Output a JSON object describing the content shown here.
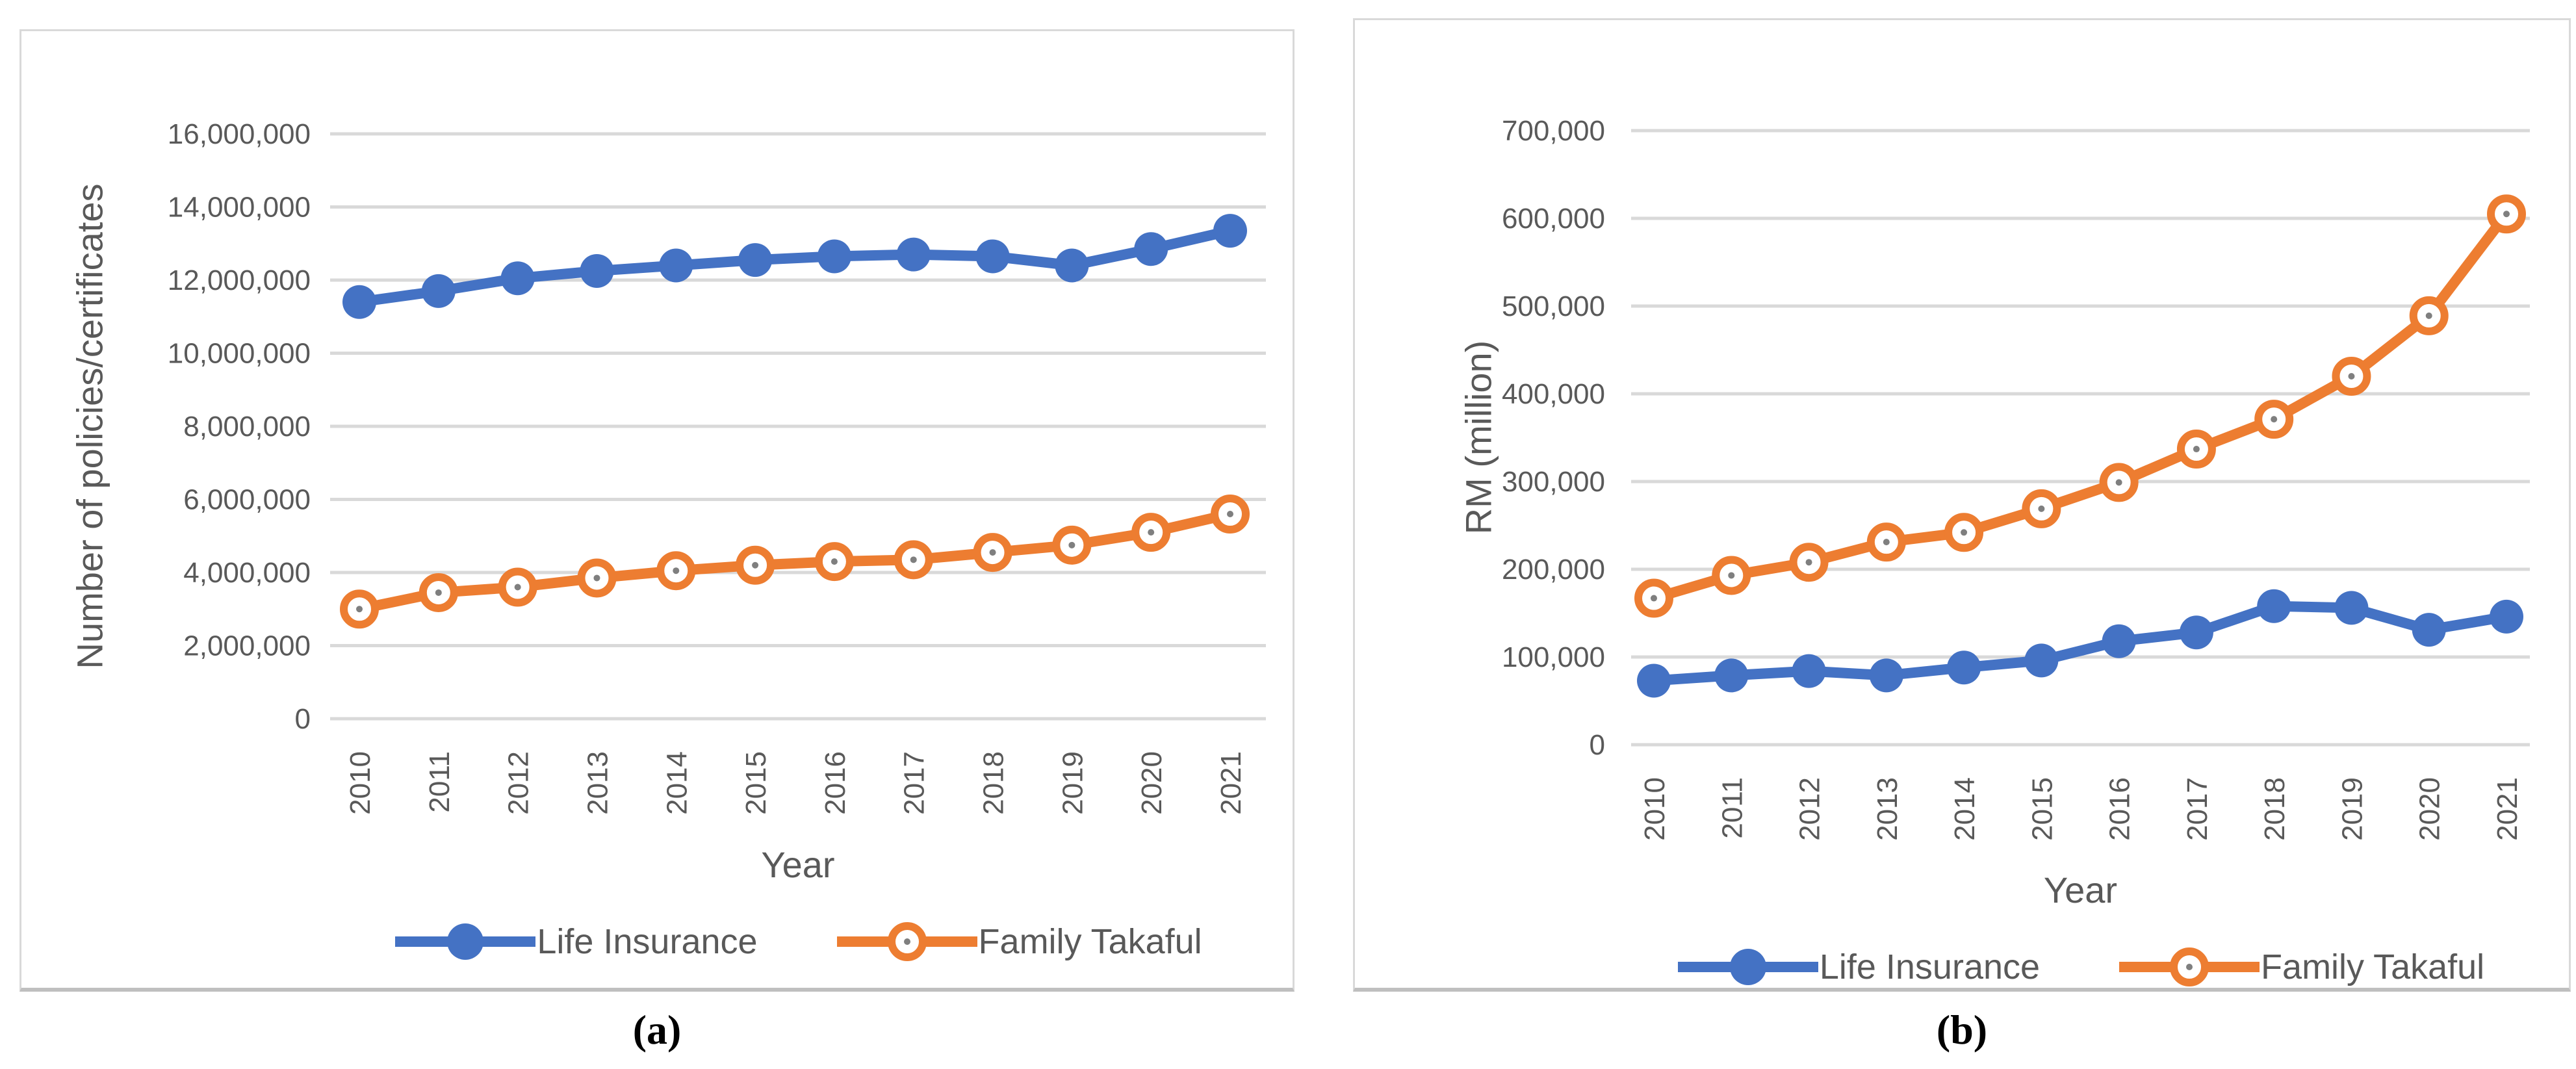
{
  "theme": {
    "accent_blue": "#4472C4",
    "accent_orange": "#ED7D31",
    "gridline_color": "#d9d9d9",
    "text_color": "#595959",
    "panel_border_color": "#d9d9d9",
    "marker_dot_color": "#7f7f7f",
    "open_marker_fill": "#ffffff"
  },
  "captions": {
    "a": "(a)",
    "b": "(b)"
  },
  "chart_data": [
    {
      "id": "a",
      "type": "line",
      "caption": "(a)",
      "x_axis": {
        "title": "Year"
      },
      "y_axis": {
        "title": "Number of policies/certificates",
        "max": 16000000,
        "step": 2000000,
        "tick_labels": [
          "0",
          "2,000,000",
          "4,000,000",
          "6,000,000",
          "8,000,000",
          "10,000,000",
          "12,000,000",
          "14,000,000",
          "16,000,000"
        ]
      },
      "categories": [
        "2010",
        "2011",
        "2012",
        "2013",
        "2014",
        "2015",
        "2016",
        "2017",
        "2018",
        "2019",
        "2020",
        "2021"
      ],
      "grid": true,
      "legend_position": "bottom",
      "series": [
        {
          "name": "Life Insurance",
          "color": "#4472C4",
          "marker": "filled",
          "values": [
            11400000,
            11700000,
            12050000,
            12250000,
            12400000,
            12550000,
            12650000,
            12700000,
            12650000,
            12400000,
            12850000,
            13350000
          ]
        },
        {
          "name": "Family Takaful",
          "color": "#ED7D31",
          "marker": "open",
          "values": [
            3000000,
            3450000,
            3600000,
            3850000,
            4050000,
            4200000,
            4300000,
            4350000,
            4550000,
            4750000,
            5100000,
            5600000
          ]
        }
      ]
    },
    {
      "id": "b",
      "type": "line",
      "caption": "(b)",
      "x_axis": {
        "title": "Year"
      },
      "y_axis": {
        "title": "RM (million)",
        "max": 700000,
        "step": 100000,
        "tick_labels": [
          "0",
          "100,000",
          "200,000",
          "300,000",
          "400,000",
          "500,000",
          "600,000",
          "700,000"
        ]
      },
      "categories": [
        "2010",
        "2011",
        "2012",
        "2013",
        "2014",
        "2015",
        "2016",
        "2017",
        "2018",
        "2019",
        "2020",
        "2021"
      ],
      "grid": true,
      "legend_position": "bottom",
      "series": [
        {
          "name": "Life Insurance",
          "color": "#4472C4",
          "marker": "filled",
          "values": [
            73000,
            79000,
            84000,
            79000,
            88000,
            96000,
            118000,
            128000,
            158000,
            156000,
            131000,
            146000
          ]
        },
        {
          "name": "Family Takaful",
          "color": "#ED7D31",
          "marker": "open",
          "values": [
            167000,
            193000,
            208000,
            231000,
            242000,
            269000,
            299000,
            337000,
            371000,
            420000,
            489000,
            605000
          ]
        }
      ]
    }
  ]
}
